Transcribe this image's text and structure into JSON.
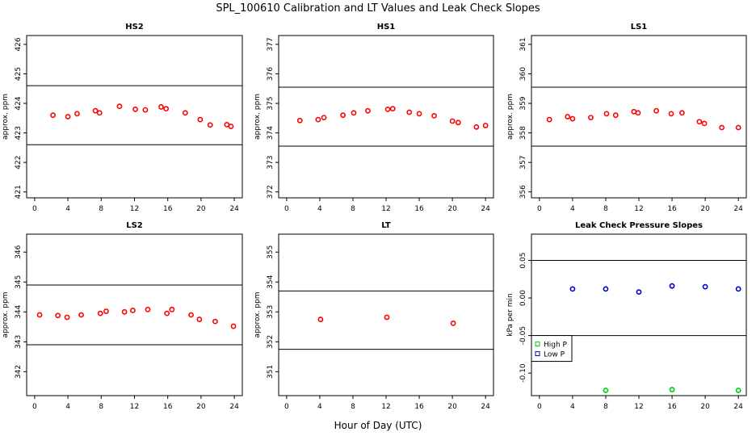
{
  "title": "SPL_100610  Calibration and LT Values and Leak Check Slopes",
  "xlabel": "Hour of Day (UTC)",
  "chart_data": [
    {
      "type": "scatter",
      "title": "HS2",
      "ylabel": "approx. ppm",
      "xlim": [
        -0.96,
        24.96
      ],
      "ylim": [
        420.8,
        426.3
      ],
      "xticks": [
        "0",
        "4",
        "8",
        "12",
        "16",
        "20",
        "24"
      ],
      "yticks": [
        "421",
        "422",
        "423",
        "424",
        "425",
        "426"
      ],
      "hlines": [
        422.6,
        424.6
      ],
      "series": [
        {
          "color": "#ff0000",
          "points": [
            [
              2.2,
              423.6
            ],
            [
              4,
              423.55
            ],
            [
              5.1,
              423.65
            ],
            [
              7.3,
              423.75
            ],
            [
              7.8,
              423.68
            ],
            [
              10.2,
              423.9
            ],
            [
              12.1,
              423.8
            ],
            [
              13.3,
              423.78
            ],
            [
              15.2,
              423.88
            ],
            [
              15.8,
              423.82
            ],
            [
              18.1,
              423.68
            ],
            [
              19.9,
              423.45
            ],
            [
              21.1,
              423.27
            ],
            [
              23.1,
              423.28
            ],
            [
              23.6,
              423.22
            ]
          ]
        }
      ]
    },
    {
      "type": "scatter",
      "title": "HS1",
      "ylabel": "approx. ppm",
      "xlim": [
        -0.96,
        24.96
      ],
      "ylim": [
        371.8,
        377.3
      ],
      "xticks": [
        "0",
        "4",
        "8",
        "12",
        "16",
        "20",
        "24"
      ],
      "yticks": [
        "372",
        "373",
        "374",
        "375",
        "376",
        "377"
      ],
      "hlines": [
        373.55,
        375.55
      ],
      "series": [
        {
          "color": "#ff0000",
          "points": [
            [
              1.6,
              374.42
            ],
            [
              3.8,
              374.45
            ],
            [
              4.5,
              374.52
            ],
            [
              6.8,
              374.6
            ],
            [
              8.1,
              374.68
            ],
            [
              9.8,
              374.75
            ],
            [
              12.2,
              374.8
            ],
            [
              12.8,
              374.82
            ],
            [
              14.8,
              374.7
            ],
            [
              16,
              374.65
            ],
            [
              17.8,
              374.58
            ],
            [
              20,
              374.4
            ],
            [
              20.7,
              374.35
            ],
            [
              22.9,
              374.2
            ],
            [
              24,
              374.25
            ]
          ]
        }
      ]
    },
    {
      "type": "scatter",
      "title": "LS1",
      "ylabel": "approx. ppm",
      "xlim": [
        -0.96,
        24.96
      ],
      "ylim": [
        355.8,
        361.3
      ],
      "xticks": [
        "0",
        "4",
        "8",
        "12",
        "16",
        "20",
        "24"
      ],
      "yticks": [
        "356",
        "357",
        "358",
        "359",
        "360",
        "361"
      ],
      "hlines": [
        357.55,
        359.55
      ],
      "series": [
        {
          "color": "#ff0000",
          "points": [
            [
              1.2,
              358.45
            ],
            [
              3.4,
              358.55
            ],
            [
              4,
              358.48
            ],
            [
              6.2,
              358.52
            ],
            [
              8.1,
              358.65
            ],
            [
              9.2,
              358.6
            ],
            [
              11.4,
              358.72
            ],
            [
              11.9,
              358.68
            ],
            [
              14.1,
              358.75
            ],
            [
              15.9,
              358.65
            ],
            [
              17.2,
              358.68
            ],
            [
              19.3,
              358.38
            ],
            [
              19.9,
              358.32
            ],
            [
              22,
              358.18
            ],
            [
              24,
              358.18
            ]
          ]
        }
      ]
    },
    {
      "type": "scatter",
      "title": "LS2",
      "ylabel": "approx. ppm",
      "xlim": [
        -0.96,
        24.96
      ],
      "ylim": [
        341.2,
        346.6
      ],
      "xticks": [
        "0",
        "4",
        "8",
        "12",
        "16",
        "20",
        "24"
      ],
      "yticks": [
        "342",
        "343",
        "344",
        "345",
        "346"
      ],
      "hlines": [
        342.9,
        344.9
      ],
      "series": [
        {
          "color": "#ff0000",
          "points": [
            [
              0.6,
              343.9
            ],
            [
              2.8,
              343.88
            ],
            [
              3.9,
              343.82
            ],
            [
              5.6,
              343.9
            ],
            [
              7.9,
              343.95
            ],
            [
              8.6,
              344.02
            ],
            [
              10.8,
              344.0
            ],
            [
              11.8,
              344.05
            ],
            [
              13.6,
              344.08
            ],
            [
              15.9,
              343.95
            ],
            [
              16.5,
              344.08
            ],
            [
              18.8,
              343.9
            ],
            [
              19.8,
              343.75
            ],
            [
              21.7,
              343.68
            ],
            [
              23.9,
              343.52
            ]
          ]
        }
      ]
    },
    {
      "type": "scatter",
      "title": "LT",
      "ylabel": "approx. ppm",
      "xlim": [
        -0.96,
        24.96
      ],
      "ylim": [
        350.2,
        355.6
      ],
      "xticks": [
        "0",
        "4",
        "8",
        "12",
        "16",
        "20",
        "24"
      ],
      "yticks": [
        "351",
        "352",
        "353",
        "354",
        "355"
      ],
      "hlines": [
        351.75,
        353.7
      ],
      "series": [
        {
          "color": "#ff0000",
          "points": [
            [
              4.1,
              352.75
            ],
            [
              12.1,
              352.82
            ],
            [
              20.1,
              352.62
            ]
          ]
        }
      ]
    },
    {
      "type": "scatter",
      "title": "Leak Check Pressure Slopes",
      "ylabel": "kPa per min",
      "xlim": [
        -0.96,
        24.96
      ],
      "ylim": [
        -0.13,
        0.085
      ],
      "xticks": [
        "0",
        "4",
        "8",
        "12",
        "16",
        "20",
        "24"
      ],
      "yticks": [
        "-0.10",
        "-0.05",
        "0.00",
        "0.05"
      ],
      "hlines": [
        -0.05,
        0.05
      ],
      "legend": "bottom-left",
      "series": [
        {
          "name": "High P",
          "color": "#00cc00",
          "points": [
            [
              8,
              -0.123
            ],
            [
              16,
              -0.122
            ],
            [
              24,
              -0.123
            ]
          ]
        },
        {
          "name": "Low P",
          "color": "#0000cc",
          "points": [
            [
              4,
              0.012
            ],
            [
              8,
              0.012
            ],
            [
              12,
              0.008
            ],
            [
              16,
              0.016
            ],
            [
              20,
              0.015
            ],
            [
              24,
              0.012
            ]
          ]
        }
      ]
    }
  ]
}
